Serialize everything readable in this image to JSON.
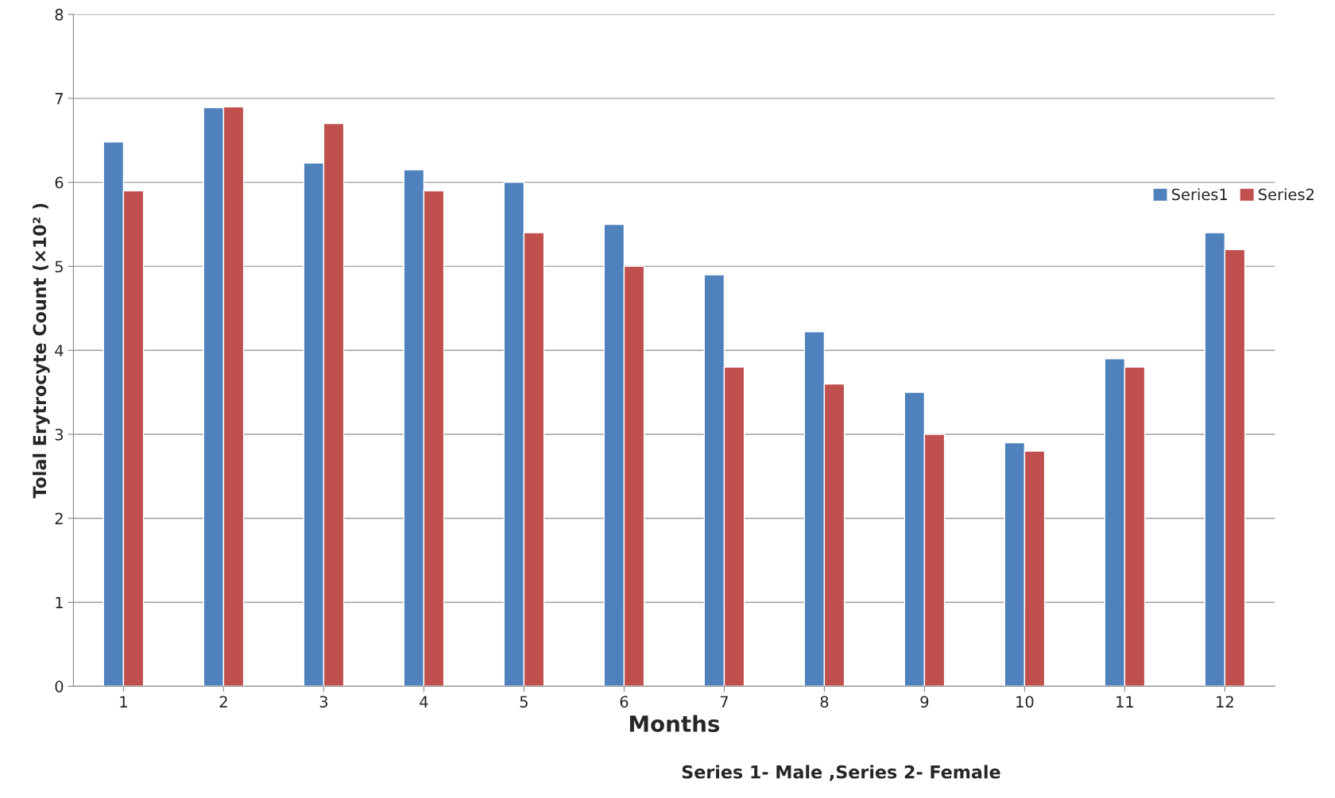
{
  "chart_data": {
    "type": "bar",
    "xlabel": "Months",
    "ylabel": "Tolal Erytrocyte Count (×10² )",
    "categories": [
      "1",
      "2",
      "3",
      "4",
      "5",
      "6",
      "7",
      "8",
      "9",
      "10",
      "11",
      "12"
    ],
    "series": [
      {
        "name": "Series1",
        "color": "#4f81bd",
        "values": [
          6.48,
          6.89,
          6.23,
          6.15,
          6.0,
          5.5,
          4.9,
          4.22,
          3.5,
          2.9,
          3.9,
          5.4
        ]
      },
      {
        "name": "Series2",
        "color": "#c0504d",
        "values": [
          5.9,
          6.9,
          6.7,
          5.9,
          5.4,
          5.0,
          3.8,
          3.6,
          3.0,
          2.8,
          3.8,
          5.2
        ]
      }
    ],
    "ylim": [
      0,
      8
    ],
    "yticks": [
      0,
      1,
      2,
      3,
      4,
      5,
      6,
      7,
      8
    ],
    "grid": "y",
    "legend": "right",
    "annotations": [
      "Series 1- Male ,Series 2- Female"
    ]
  }
}
